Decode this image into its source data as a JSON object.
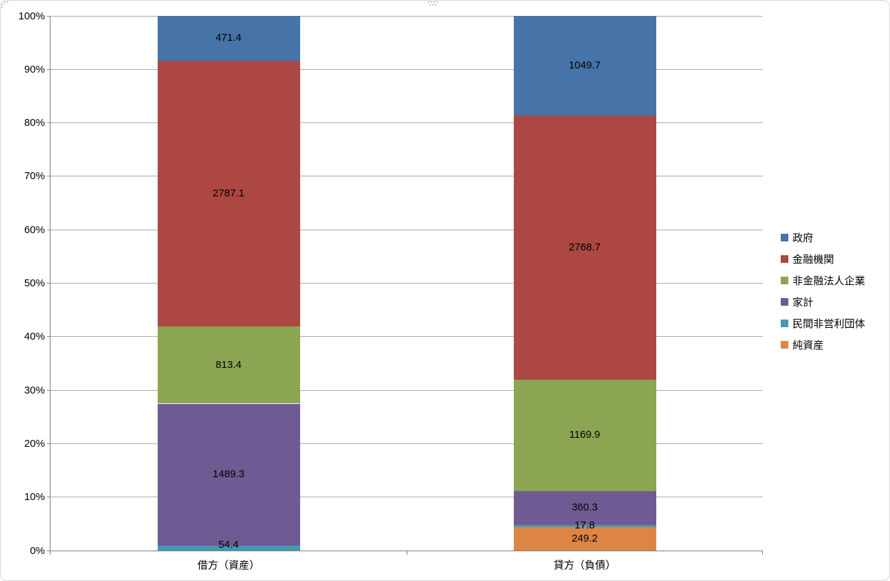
{
  "chart_data": {
    "type": "bar",
    "subtype": "stacked-100-percent-column",
    "title": "",
    "categories": [
      "借方（資産）",
      "貸方（負債）"
    ],
    "series": [
      {
        "name": "政府",
        "color": "#4673A8",
        "values": [
          471.4,
          1049.7
        ]
      },
      {
        "name": "金融機関",
        "color": "#AC4744",
        "values": [
          2787.1,
          2768.7
        ]
      },
      {
        "name": "非金融法人企業",
        "color": "#8CA552",
        "values": [
          813.4,
          1169.9
        ]
      },
      {
        "name": "家計",
        "color": "#6F5B93",
        "values": [
          1489.3,
          360.3
        ]
      },
      {
        "name": "民間非営利団体",
        "color": "#4599B2",
        "values": [
          54.4,
          17.8
        ]
      },
      {
        "name": "純資産",
        "color": "#DD8544",
        "values": [
          0,
          249.2
        ]
      }
    ],
    "stack_order_bottom_to_top": [
      "純資産",
      "民間非営利団体",
      "家計",
      "非金融法人企業",
      "金融機関",
      "政府"
    ],
    "data_labels_shown": true,
    "y_axis": {
      "min": 0,
      "max": 100,
      "tick_labels": [
        "0%",
        "10%",
        "20%",
        "30%",
        "40%",
        "50%",
        "60%",
        "70%",
        "80%",
        "90%",
        "100%"
      ]
    },
    "legend_position": "right",
    "grid": true,
    "colors": {
      "axis": "#7f7f7f",
      "gridline": "#a9a9a9",
      "chart_border": "#d4d4d4",
      "label_text": "#000000"
    }
  }
}
